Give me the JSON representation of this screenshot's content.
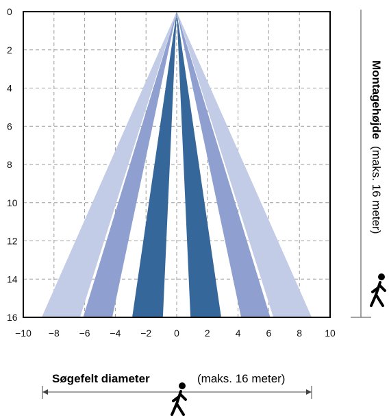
{
  "chart_data": {
    "type": "area",
    "title": "",
    "xlabel": {
      "bold": "Søgefelt diameter",
      "rest": "(maks. 16 meter)"
    },
    "ylabel": {
      "bold": "Montagehøjde",
      "rest": "(maks. 16 meter)"
    },
    "xlim": [
      -10,
      10
    ],
    "ylim": [
      0,
      16
    ],
    "y_inverted": true,
    "grid": true,
    "x_ticks": [
      "−10",
      "−8",
      "−6",
      "−4",
      "−2",
      "0",
      "2",
      "4",
      "6",
      "8",
      "10"
    ],
    "y_ticks": [
      "0",
      "2",
      "4",
      "6",
      "8",
      "10",
      "12",
      "14",
      "16"
    ],
    "apex": {
      "x": 0,
      "y": 0
    },
    "series": [
      {
        "color": "#c3cce6",
        "polygons": [
          [
            [
              0,
              0
            ],
            [
              -8.8,
              16
            ],
            [
              -6.3,
              16
            ]
          ],
          [
            [
              0,
              0
            ],
            [
              6.3,
              16
            ],
            [
              8.8,
              16
            ]
          ]
        ]
      },
      {
        "color": "#8f9fd0",
        "polygons": [
          [
            [
              0,
              0
            ],
            [
              -6.1,
              16
            ],
            [
              -4.2,
              16
            ]
          ],
          [
            [
              0,
              0
            ],
            [
              4.2,
              16
            ],
            [
              6.1,
              16
            ]
          ]
        ]
      },
      {
        "color": "#35679b",
        "polygons": [
          [
            [
              0,
              0
            ],
            [
              -2.9,
              16
            ],
            [
              -0.9,
              16
            ]
          ],
          [
            [
              0,
              0
            ],
            [
              0.9,
              16
            ],
            [
              2.9,
              16
            ]
          ]
        ]
      }
    ]
  }
}
